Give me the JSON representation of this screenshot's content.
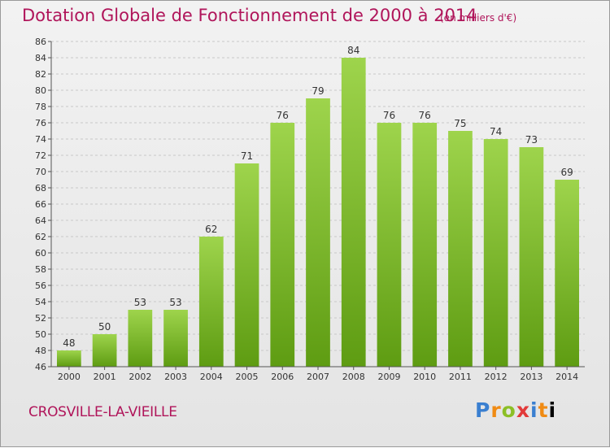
{
  "chart": {
    "title": "Dotation Globale de Fonctionnement de 2000 à 2014",
    "unit_note": "(en milliers d'€)",
    "commune": "CROSVILLE-LA-VIEILLE",
    "logo_text": "Proxiti"
  },
  "colors": {
    "title": "#b0155a",
    "bar_top": "#9ed44c",
    "bar_bottom": "#5e9c12",
    "grid": "#c8c8c8"
  },
  "chart_data": {
    "type": "bar",
    "title": "Dotation Globale de Fonctionnement de 2000 à 2014",
    "xlabel": "",
    "ylabel": "",
    "categories": [
      "2000",
      "2001",
      "2002",
      "2003",
      "2004",
      "2005",
      "2006",
      "2007",
      "2008",
      "2009",
      "2010",
      "2011",
      "2012",
      "2013",
      "2014"
    ],
    "values": [
      48,
      50,
      53,
      53,
      62,
      71,
      76,
      79,
      84,
      76,
      76,
      75,
      74,
      73,
      69
    ],
    "ylim": [
      46,
      86
    ],
    "ytick_step": 2,
    "grid": true,
    "data_labels": true
  }
}
